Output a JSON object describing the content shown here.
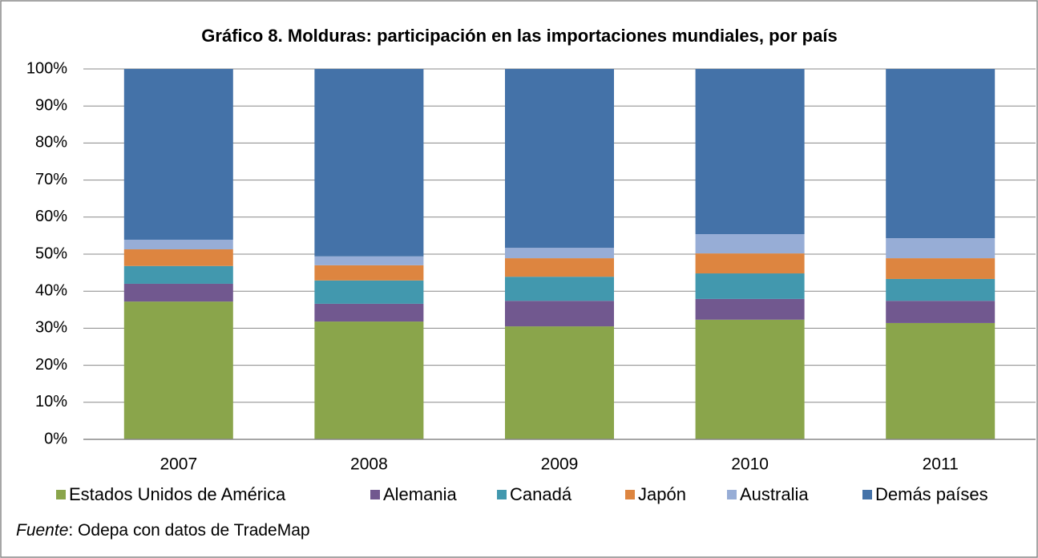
{
  "chart_data": {
    "type": "stacked_bar",
    "title": "Gráfico 8. Molduras: participación en las importaciones mundiales, por país",
    "categories": [
      "2007",
      "2008",
      "2009",
      "2010",
      "2011"
    ],
    "series": [
      {
        "name": "Estados Unidos de América",
        "color": "#8aa54b",
        "values": [
          37.2,
          31.8,
          30.5,
          32.3,
          31.4
        ]
      },
      {
        "name": "Alemania",
        "color": "#71588f",
        "values": [
          4.8,
          4.8,
          6.9,
          5.6,
          6.0
        ]
      },
      {
        "name": "Canadá",
        "color": "#4298ae",
        "values": [
          4.8,
          6.3,
          6.5,
          6.9,
          5.9
        ]
      },
      {
        "name": "Japón",
        "color": "#dd8540",
        "values": [
          4.5,
          4.1,
          5.0,
          5.4,
          5.6
        ]
      },
      {
        "name": "Australia",
        "color": "#97add6",
        "values": [
          2.6,
          2.4,
          2.8,
          5.2,
          5.4
        ]
      },
      {
        "name": "Demás países",
        "color": "#4472a8",
        "values": [
          46.1,
          50.6,
          48.3,
          44.6,
          45.7
        ]
      }
    ],
    "ylim": [
      0,
      100
    ],
    "yticks": [
      {
        "value": 0,
        "label": "0%"
      },
      {
        "value": 10,
        "label": "10%"
      },
      {
        "value": 20,
        "label": "20%"
      },
      {
        "value": 30,
        "label": "30%"
      },
      {
        "value": 40,
        "label": "40%"
      },
      {
        "value": 50,
        "label": "50%"
      },
      {
        "value": 60,
        "label": "60%"
      },
      {
        "value": 70,
        "label": "70%"
      },
      {
        "value": 80,
        "label": "80%"
      },
      {
        "value": 90,
        "label": "90%"
      },
      {
        "value": 100,
        "label": "100%"
      }
    ],
    "grid": true,
    "legend": "bottom",
    "source": {
      "label": "Fuente",
      "text": ": Odepa con datos de TradeMap"
    }
  }
}
